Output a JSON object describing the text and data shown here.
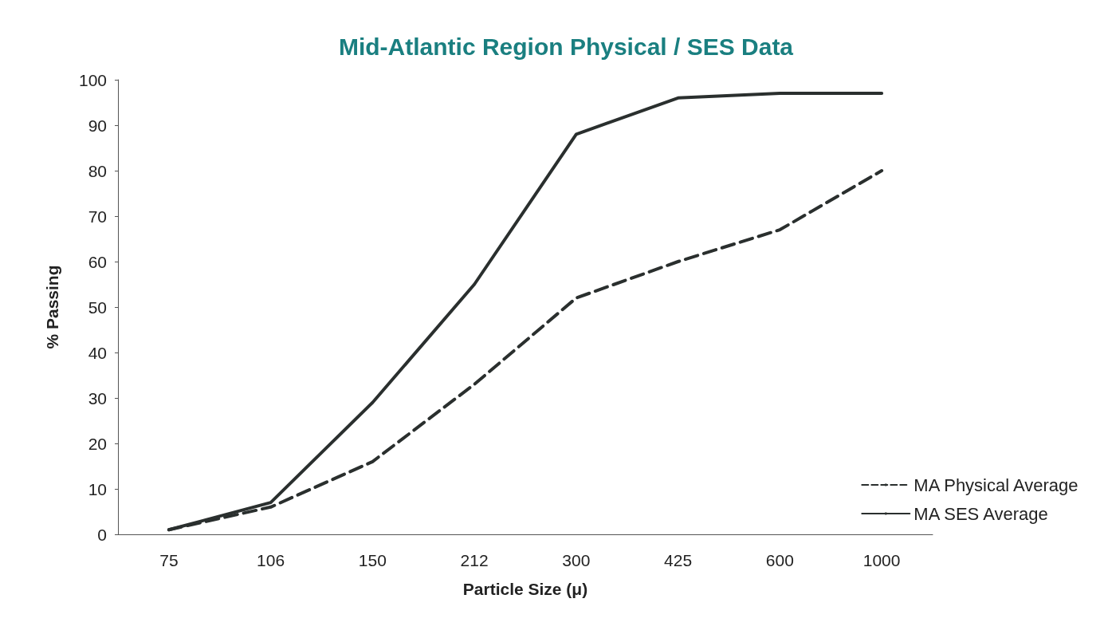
{
  "chart_data": {
    "type": "line",
    "title": "Mid-Atlantic Region Physical / SES Data",
    "xlabel": "Particle Size (μ)",
    "ylabel": "% Passing",
    "categories": [
      "75",
      "106",
      "150",
      "212",
      "300",
      "425",
      "600",
      "1000"
    ],
    "series": [
      {
        "name": "MA Physical Average",
        "color": "#2a2f2e",
        "line_style": "dashed",
        "values": [
          1,
          6,
          16,
          33,
          52,
          60,
          67,
          80
        ]
      },
      {
        "name": "MA SES Average",
        "color": "#2a2f2e",
        "line_style": "solid",
        "values": [
          1,
          7,
          29,
          55,
          88,
          96,
          97,
          97
        ]
      }
    ],
    "ylim": [
      0,
      100
    ],
    "yticks": [
      0,
      10,
      20,
      30,
      40,
      50,
      60,
      70,
      80,
      90,
      100
    ],
    "grid": false,
    "legend": "bottom right",
    "marker": "none"
  }
}
